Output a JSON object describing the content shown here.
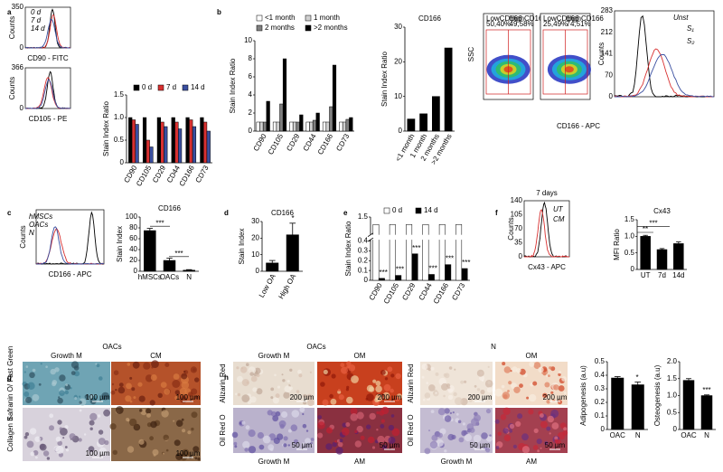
{
  "panel_labels": [
    "a",
    "b",
    "c",
    "d",
    "e",
    "f",
    "g",
    "h"
  ],
  "chart_data": [
    {
      "type": "bar",
      "ylabel": "Stain Index Ratio",
      "categories": [
        "CD90",
        "CD105",
        "CD29",
        "CD44",
        "CD166",
        "CD73"
      ],
      "series": [
        {
          "name": "0 d",
          "color": "#000000",
          "values": [
            1,
            1,
            1,
            1,
            1,
            1
          ]
        },
        {
          "name": "7 d",
          "color": "#d83030",
          "values": [
            0.95,
            0.5,
            0.9,
            0.9,
            0.95,
            0.9
          ]
        },
        {
          "name": "14 d",
          "color": "#3a4fa0",
          "values": [
            0.85,
            0.35,
            0.8,
            0.75,
            0.8,
            0.7
          ]
        }
      ],
      "ylim": [
        0,
        1.5
      ],
      "yticks": [
        0,
        0.5,
        {
          "value": 1,
          "label": "1.0"
        },
        1.5
      ]
    },
    {
      "type": "bar",
      "ylabel": "Stain Index Ratio",
      "categories": [
        "CD90",
        "CD105",
        "CD29",
        "CD44",
        "CD166",
        "CD73"
      ],
      "series": [
        {
          "name": "<1 month",
          "color": "#ffffff",
          "values": [
            1,
            1,
            1,
            1,
            1,
            1
          ]
        },
        {
          "name": "1 month",
          "color": "#d0d0d0",
          "values": [
            1,
            1,
            1,
            1,
            1,
            1
          ]
        },
        {
          "name": "2 months",
          "color": "#808080",
          "values": [
            1,
            3,
            1,
            1.2,
            2.7,
            1.3
          ]
        },
        {
          "name": ">2 months",
          "color": "#000000",
          "values": [
            3.3,
            8,
            1.8,
            2,
            7.3,
            1.5
          ]
        }
      ],
      "ylim": [
        0,
        10
      ],
      "yticks": [
        0,
        2,
        4,
        6,
        8,
        10
      ]
    },
    {
      "type": "bar",
      "title": "CD166",
      "ylabel": "Stain Index Ratio",
      "categories": [
        "<1 month",
        "1 month",
        "2 months",
        ">2 months"
      ],
      "values": [
        3.5,
        5,
        10,
        24
      ],
      "color": "#000000",
      "ylim": [
        0,
        30
      ],
      "yticks": [
        0,
        10,
        20,
        30
      ]
    },
    {
      "type": "bar",
      "title": "CD166",
      "ylabel": "Stain Index",
      "categories": [
        "hMSCs",
        "OACs",
        "N"
      ],
      "values": [
        75,
        20,
        2
      ],
      "errors": [
        4,
        4,
        1
      ],
      "color": "#000000",
      "ylim": [
        0,
        100
      ],
      "yticks": [
        0,
        20,
        40,
        60,
        80,
        100
      ],
      "annotations": [
        "***",
        "***"
      ]
    },
    {
      "type": "bar",
      "title": "CD166",
      "ylabel": "Stain Index",
      "categories": [
        "Low OA",
        "High OA"
      ],
      "values": [
        5,
        22
      ],
      "errors": [
        1.5,
        7
      ],
      "color": "#000000",
      "ylim": [
        0,
        30
      ],
      "yticks": [
        0,
        10,
        20,
        30
      ],
      "annotations": [
        "*"
      ]
    },
    {
      "type": "bar",
      "ylabel": "Stain Index Ratio",
      "categories": [
        "CD90",
        "CD105",
        "CD29",
        "CD44",
        "CD166",
        "CD73"
      ],
      "series": [
        {
          "name": "0 d",
          "color": "#ffffff",
          "values": [
            1,
            1,
            1,
            1,
            1,
            1
          ]
        },
        {
          "name": "14 d",
          "color": "#000000",
          "values": [
            0.02,
            0.05,
            0.27,
            0.06,
            0.16,
            0.12
          ]
        }
      ],
      "ylim": [
        0,
        1.5
      ],
      "yticks": [
        0,
        0.1,
        0.2,
        0.3,
        0.4,
        1.5
      ],
      "broken_axis": true,
      "annotations": [
        "***",
        "***",
        "***",
        "***",
        "***",
        "***"
      ]
    },
    {
      "type": "bar",
      "title": "Cx43",
      "ylabel": "MFI Ratio",
      "categories": [
        "UT",
        "7d",
        "14d"
      ],
      "values": [
        1,
        0.6,
        0.78
      ],
      "errors": [
        0.03,
        0.03,
        0.05
      ],
      "color": "#000000",
      "ylim": [
        0,
        1.5
      ],
      "yticks": [
        0,
        0.5,
        {
          "value": 1,
          "label": "1.0"
        },
        1.5
      ],
      "annotations": [
        "**",
        "***"
      ]
    },
    {
      "type": "bar",
      "ylabel": "Adipogenesis (a.u)",
      "categories": [
        "OAC",
        "N"
      ],
      "values": [
        0.38,
        0.33
      ],
      "errors": [
        0.01,
        0.02
      ],
      "color": "#000000",
      "ylim": [
        0,
        0.5
      ],
      "yticks": [
        0,
        0.1,
        0.2,
        0.3,
        0.4,
        0.5
      ],
      "annotations": [
        "*"
      ]
    },
    {
      "type": "bar",
      "ylabel": "Osteogenesis (a.u)",
      "categories": [
        "OAC",
        "N"
      ],
      "values": [
        1.45,
        1
      ],
      "errors": [
        0.05,
        0.02
      ],
      "color": "#000000",
      "ylim": [
        0,
        2
      ],
      "yticks": [
        0,
        0.5,
        {
          "value": 1,
          "label": "1.0"
        },
        1.5,
        {
          "value": 2,
          "label": "2.0"
        }
      ],
      "annotations": [
        "***"
      ]
    }
  ],
  "flow_plots": [
    {
      "ylabel": "Counts",
      "xlabel": "CD90 - FITC",
      "yticks": [
        "350",
        "0"
      ],
      "legend": [
        "0 d",
        "7 d",
        "14 d"
      ],
      "colors": [
        "#000000",
        "#d83030",
        "#3a4fa0"
      ]
    },
    {
      "ylabel": "Counts",
      "xlabel": "CD105 - PE",
      "yticks": [
        "366",
        "0"
      ],
      "colors": [
        "#000000",
        "#d83030",
        "#3a4fa0"
      ]
    },
    {
      "ylabel": "Counts",
      "yticks": [
        "283",
        "212",
        "141",
        "70",
        "0"
      ],
      "legend": [
        "Unst",
        "S₁",
        "S₂"
      ],
      "colors": [
        "#000000",
        "#d83030",
        "#3a4fa0"
      ]
    },
    {
      "ylabel": "Counts",
      "xlabel": "CD166 - APC",
      "legend": [
        "hMSCs",
        "OACs",
        "N"
      ],
      "colors": [
        "#000000",
        "#d83030",
        "#3a4fa0"
      ]
    },
    {
      "title": "7 days",
      "ylabel": "Counts",
      "xlabel": "Cx43 - APC",
      "yticks": [
        "140",
        "105",
        "70",
        "35",
        "0"
      ],
      "legend": [
        "UT",
        "CM"
      ],
      "colors": [
        "#000000",
        "#d83030"
      ]
    }
  ],
  "density_plots": {
    "ylabel": "SSC",
    "xlabel": "CD166 - APC",
    "plots": [
      {
        "gates": [
          {
            "name": "LowCD166",
            "value": "50,40%"
          },
          {
            "name": "HighCD166",
            "value": "49,58%"
          }
        ]
      },
      {
        "gates": [
          {
            "name": "LowCD166",
            "value": "25,49%"
          },
          {
            "name": "HighCD166",
            "value": "74,51%"
          }
        ]
      }
    ]
  },
  "images": [
    {
      "title": "OACs",
      "top_labels": [
        "Growth M",
        "CM"
      ],
      "row_labels": [
        "Safranin O/ Fast Green",
        "Collagen II"
      ],
      "scale_labels": [
        "100 µm",
        "100 µm"
      ]
    },
    {
      "title": "OACs",
      "top_labels": [
        "Growth M",
        "OM"
      ],
      "bottom_labels": [
        "Growth M",
        "AM"
      ],
      "row_labels": [
        "Alizarin Red",
        "Oil Red O"
      ],
      "scale_labels": [
        "200 µm",
        "50 µm"
      ]
    },
    {
      "title": "N",
      "top_labels": [
        "OM"
      ],
      "bottom_labels": [
        "Growth M",
        "AM"
      ],
      "row_labels": [
        "Alizarin Red",
        "Oil Red O"
      ],
      "scale_labels": [
        "200 µm",
        "50 µm"
      ]
    }
  ]
}
